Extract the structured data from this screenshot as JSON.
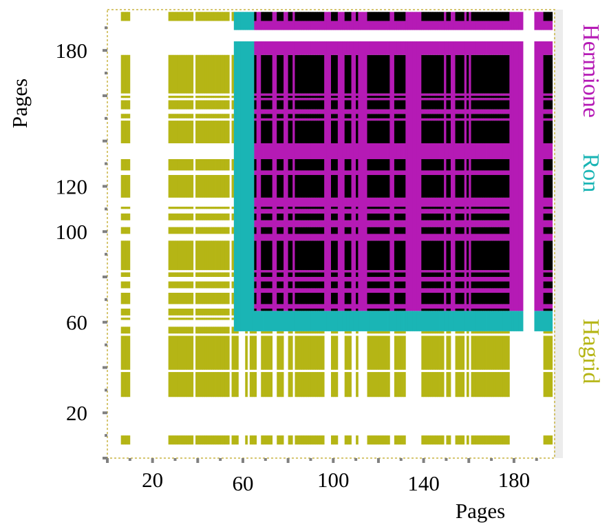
{
  "chart_data": {
    "type": "heatmap",
    "title": "",
    "xlabel": "Pages",
    "ylabel": "Pages",
    "xlim": [
      0,
      198
    ],
    "ylim": [
      0,
      198
    ],
    "xticks": [
      20,
      60,
      100,
      140,
      180
    ],
    "yticks": [
      20,
      60,
      100,
      120,
      180
    ],
    "grid": false,
    "legend_placement": "right",
    "series": [
      {
        "name": "Hagrid",
        "color": "#b5b515",
        "pages": [
          7,
          8,
          9,
          10,
          28,
          29,
          30,
          31,
          32,
          33,
          34,
          35,
          36,
          37,
          38,
          40,
          41,
          42,
          43,
          44,
          45,
          46,
          47,
          48,
          49,
          50,
          51,
          52,
          53,
          54,
          56,
          57,
          58,
          62,
          64,
          65,
          66,
          69,
          70,
          71,
          72,
          73,
          76,
          77,
          78,
          81,
          82,
          84,
          85,
          86,
          87,
          88,
          89,
          90,
          91,
          92,
          93,
          94,
          95,
          96,
          100,
          101,
          102,
          106,
          107,
          108,
          111,
          116,
          117,
          118,
          119,
          120,
          121,
          122,
          123,
          124,
          125,
          128,
          129,
          130,
          131,
          132,
          140,
          141,
          142,
          143,
          144,
          145,
          146,
          147,
          148,
          149,
          151,
          152,
          155,
          156,
          157,
          158,
          160,
          162,
          163,
          164,
          165,
          166,
          167,
          168,
          169,
          170,
          171,
          172,
          173,
          174,
          175,
          176,
          177,
          178,
          194,
          195,
          196,
          197
        ]
      },
      {
        "name": "Ron",
        "color": "#1ab5b5",
        "pages": [
          57,
          58,
          59,
          60,
          61,
          62,
          63,
          64,
          65,
          66,
          67,
          68,
          69,
          70,
          71,
          72,
          73,
          74,
          75,
          76,
          77,
          78,
          79,
          80,
          81,
          82,
          83,
          84,
          85,
          86,
          87,
          88,
          89,
          90,
          91,
          92,
          93,
          94,
          95,
          96,
          97,
          98,
          99,
          100,
          101,
          102,
          103,
          104,
          105,
          106,
          107,
          108,
          109,
          110,
          111,
          112,
          113,
          114,
          115,
          116,
          117,
          118,
          119,
          120,
          121,
          122,
          123,
          124,
          125,
          126,
          127,
          128,
          129,
          130,
          131,
          132,
          133,
          134,
          135,
          136,
          137,
          138,
          139,
          140,
          141,
          142,
          143,
          144,
          145,
          146,
          147,
          148,
          149,
          150,
          151,
          152,
          153,
          154,
          155,
          156,
          157,
          158,
          159,
          160,
          161,
          162,
          163,
          164,
          165,
          166,
          167,
          168,
          169,
          170,
          171,
          172,
          173,
          174,
          175,
          176,
          177,
          178,
          179,
          180,
          181,
          182,
          183,
          184,
          190,
          191,
          192,
          193,
          194,
          195,
          196,
          197
        ]
      },
      {
        "name": "Hermione",
        "color": "#b51ab5",
        "pages": [
          66,
          67,
          68,
          69,
          70,
          71,
          72,
          73,
          74,
          75,
          76,
          77,
          78,
          79,
          80,
          81,
          82,
          83,
          84,
          85,
          86,
          87,
          88,
          89,
          90,
          91,
          92,
          93,
          94,
          95,
          96,
          97,
          98,
          99,
          100,
          101,
          102,
          103,
          104,
          105,
          106,
          107,
          108,
          109,
          110,
          111,
          112,
          113,
          114,
          115,
          116,
          117,
          118,
          119,
          120,
          121,
          122,
          123,
          124,
          125,
          126,
          127,
          128,
          129,
          130,
          131,
          132,
          133,
          134,
          135,
          136,
          137,
          138,
          139,
          140,
          141,
          142,
          143,
          144,
          145,
          146,
          147,
          148,
          149,
          150,
          151,
          152,
          153,
          154,
          155,
          156,
          157,
          158,
          159,
          160,
          161,
          162,
          163,
          164,
          165,
          166,
          167,
          168,
          169,
          170,
          171,
          172,
          173,
          174,
          175,
          176,
          177,
          178,
          179,
          180,
          181,
          182,
          183,
          184,
          190,
          191,
          192,
          193,
          194,
          195,
          196,
          197
        ]
      }
    ],
    "overlap_color": "#000000",
    "legend": [
      "Hermione",
      "Ron",
      "Hagrid"
    ]
  }
}
